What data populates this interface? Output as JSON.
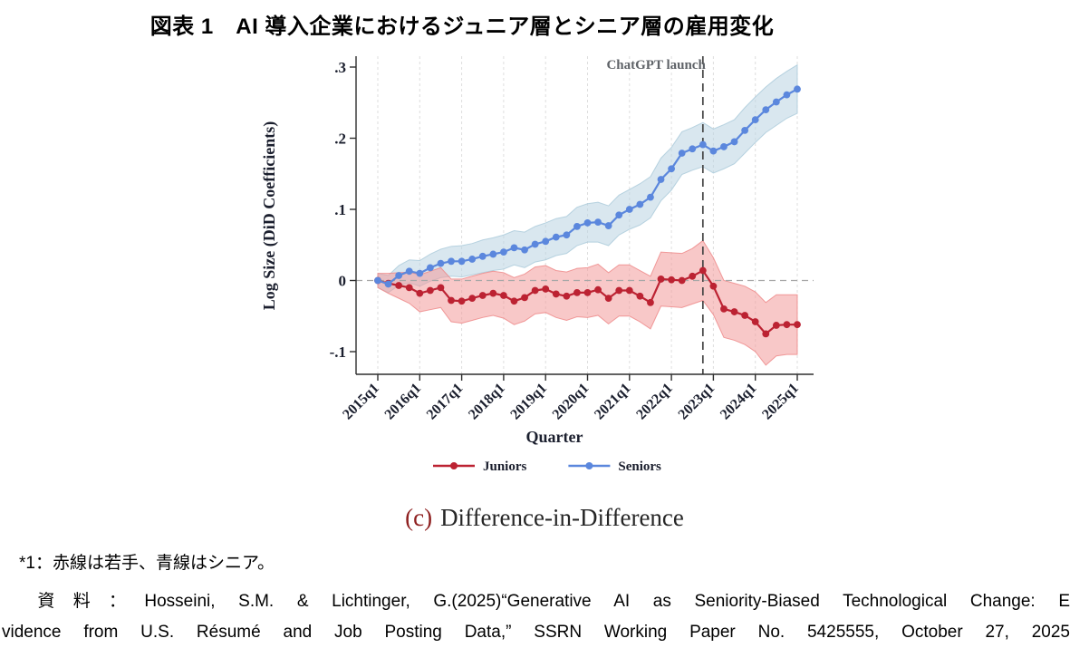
{
  "header": {
    "title": "図表 1　AI 導入企業におけるジュニア層とシニア層の雇用変化"
  },
  "caption": {
    "tag": "(c)",
    "text": "Difference-in-Difference"
  },
  "footnotes": {
    "note1": "*1：赤線は若手、青線はシニア。",
    "source_line1": "　資料：Hosseini, S.M. & Lichtinger, G.(2025)“Generative AI as Seniority-Biased Technological Change: E",
    "source_line2": "vidence from U.S. Résumé and Job Posting Data,” SSRN Working Paper No. 5425555, October 27, 2025"
  },
  "chart_data": {
    "type": "line",
    "annotation": "ChatGPT launch",
    "xlabel": "Quarter",
    "ylabel": "Log Size (DiD Coefficients)",
    "ylim": [
      -0.13,
      0.31
    ],
    "yticks": [
      -0.1,
      0,
      0.1,
      0.2,
      0.3
    ],
    "ytick_labels": [
      "-.1",
      "0",
      ".1",
      ".2",
      ".3"
    ],
    "x": [
      "2015q1",
      "2015q2",
      "2015q3",
      "2015q4",
      "2016q1",
      "2016q2",
      "2016q3",
      "2016q4",
      "2017q1",
      "2017q2",
      "2017q3",
      "2017q4",
      "2018q1",
      "2018q2",
      "2018q3",
      "2018q4",
      "2019q1",
      "2019q2",
      "2019q3",
      "2019q4",
      "2020q1",
      "2020q2",
      "2020q3",
      "2020q4",
      "2021q1",
      "2021q2",
      "2021q3",
      "2021q4",
      "2022q1",
      "2022q2",
      "2022q3",
      "2022q4",
      "2023q1",
      "2023q2",
      "2023q3",
      "2023q4",
      "2024q1",
      "2024q2",
      "2024q3",
      "2024q4",
      "2025q1"
    ],
    "x_major_tick_every": 4,
    "event_line_at": "2022q4",
    "zero_reference_line": true,
    "grid": "vertical-yearly-dashed",
    "legend_position": "bottom-center",
    "series": [
      {
        "name": "Juniors",
        "color": "#bc2232",
        "band_fill": "#f29a9a",
        "band_edge": "#ee8585",
        "values": [
          0.0,
          -0.004,
          -0.007,
          -0.01,
          -0.018,
          -0.014,
          -0.01,
          -0.028,
          -0.029,
          -0.025,
          -0.021,
          -0.018,
          -0.021,
          -0.029,
          -0.024,
          -0.014,
          -0.012,
          -0.019,
          -0.022,
          -0.017,
          -0.017,
          -0.013,
          -0.025,
          -0.014,
          -0.014,
          -0.022,
          -0.031,
          0.002,
          0.001,
          0.0,
          0.006,
          0.014,
          -0.008,
          -0.04,
          -0.044,
          -0.049,
          -0.058,
          -0.075,
          -0.063,
          -0.062,
          -0.062
        ],
        "ci": [
          0.01,
          0.014,
          0.018,
          0.022,
          0.026,
          0.027,
          0.028,
          0.03,
          0.031,
          0.031,
          0.031,
          0.031,
          0.032,
          0.033,
          0.033,
          0.033,
          0.033,
          0.033,
          0.034,
          0.034,
          0.035,
          0.036,
          0.036,
          0.036,
          0.036,
          0.036,
          0.037,
          0.038,
          0.038,
          0.038,
          0.039,
          0.042,
          0.04,
          0.04,
          0.04,
          0.041,
          0.042,
          0.044,
          0.043,
          0.042,
          0.042
        ]
      },
      {
        "name": "Seniors",
        "color": "#5b87dd",
        "band_fill": "#b9d3e2",
        "band_edge": "#a9c9da",
        "values": [
          0.0,
          -0.005,
          0.007,
          0.013,
          0.01,
          0.018,
          0.024,
          0.027,
          0.027,
          0.03,
          0.034,
          0.037,
          0.04,
          0.046,
          0.043,
          0.051,
          0.055,
          0.061,
          0.064,
          0.076,
          0.081,
          0.082,
          0.077,
          0.092,
          0.1,
          0.107,
          0.117,
          0.142,
          0.157,
          0.179,
          0.185,
          0.191,
          0.182,
          0.188,
          0.195,
          0.211,
          0.226,
          0.24,
          0.251,
          0.261,
          0.269
        ],
        "ci": [
          0.01,
          0.012,
          0.014,
          0.016,
          0.018,
          0.019,
          0.02,
          0.021,
          0.022,
          0.022,
          0.023,
          0.023,
          0.024,
          0.024,
          0.025,
          0.025,
          0.026,
          0.026,
          0.026,
          0.027,
          0.027,
          0.028,
          0.028,
          0.028,
          0.028,
          0.029,
          0.029,
          0.03,
          0.03,
          0.03,
          0.03,
          0.031,
          0.031,
          0.031,
          0.031,
          0.032,
          0.032,
          0.032,
          0.033,
          0.033,
          0.034
        ]
      }
    ]
  },
  "colors": {
    "caption_tag": "#8e1f1f",
    "annotation_text": "#5f6368",
    "axis_text": "#1b1f2e",
    "event_line": "#454545",
    "zero_line": "#a8a8a8",
    "grid_line": "#dedede",
    "axis_spine": "#2f2f2f"
  }
}
